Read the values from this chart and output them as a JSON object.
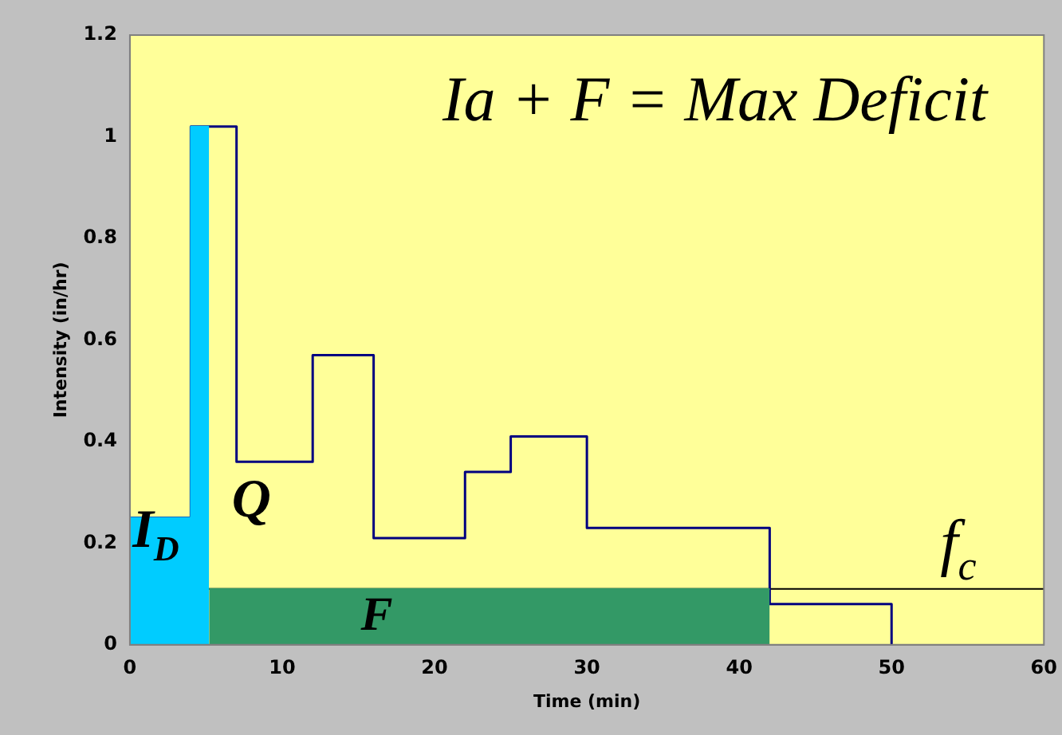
{
  "chart_data": {
    "type": "step",
    "xlabel": "Time (min)",
    "ylabel": "Intensity (in/hr)",
    "xlim": [
      0,
      60
    ],
    "xticks": [
      0,
      10,
      20,
      30,
      40,
      50,
      60
    ],
    "ylim": [
      0,
      1.2
    ],
    "yticks": [
      0,
      0.2,
      0.4,
      0.6,
      0.8,
      1,
      1.2
    ],
    "grid": false,
    "legend": false,
    "series": [
      {
        "type": "area",
        "color": "#00ccff",
        "x": [
          0,
          4,
          5.2
        ],
        "values": [
          0.25,
          1.02,
          1.02
        ]
      },
      {
        "type": "area",
        "color": "#339966",
        "x": [
          5.2,
          42
        ],
        "values": [
          0.11,
          0.11
        ]
      },
      {
        "color": "#000080",
        "x": [
          0,
          4,
          7,
          12,
          16,
          22,
          25,
          30,
          42,
          50
        ],
        "values": [
          0.25,
          1.02,
          0.36,
          0.57,
          0.21,
          0.34,
          0.41,
          0.23,
          0.08,
          0
        ]
      }
    ],
    "ref_lines": [
      {
        "axis": "y",
        "value": 0.11,
        "label": "f$_{c}$",
        "color": "#000000"
      }
    ],
    "annotations": [
      "Ia + F = Max Deficit",
      "I$_{D}$",
      "Q",
      "F"
    ]
  }
}
